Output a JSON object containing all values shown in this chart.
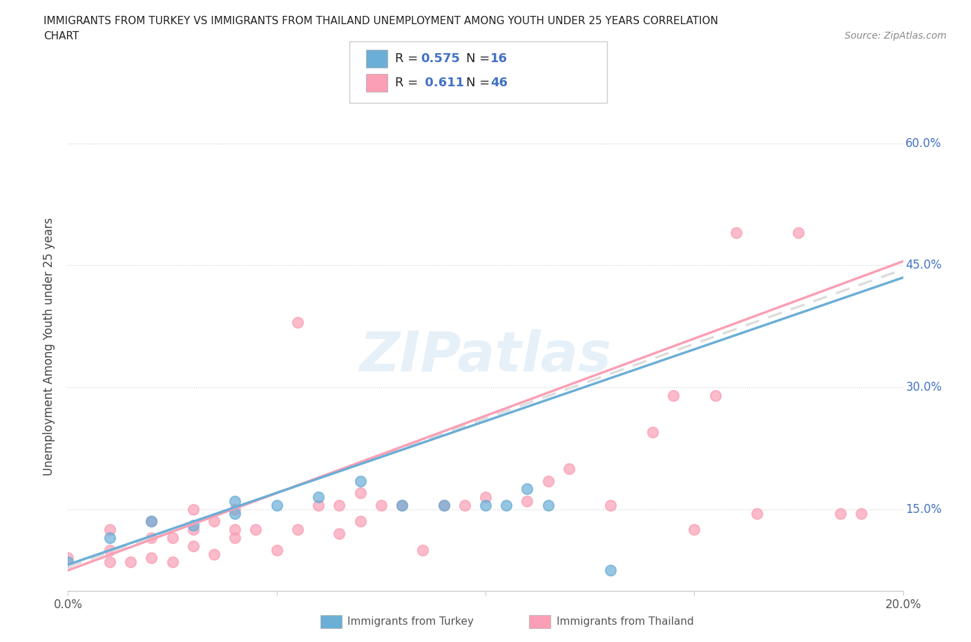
{
  "title_line1": "IMMIGRANTS FROM TURKEY VS IMMIGRANTS FROM THAILAND UNEMPLOYMENT AMONG YOUTH UNDER 25 YEARS CORRELATION",
  "title_line2": "CHART",
  "source_text": "Source: ZipAtlas.com",
  "ylabel": "Unemployment Among Youth under 25 years",
  "xlim": [
    0.0,
    0.2
  ],
  "ylim": [
    0.05,
    0.65
  ],
  "turkey_color": "#6baed6",
  "thailand_color": "#fa9fb5",
  "turkey_R": 0.575,
  "turkey_N": 16,
  "thailand_R": 0.611,
  "thailand_N": 46,
  "watermark": "ZIPatlas",
  "background_color": "#ffffff",
  "grid_color": "#cccccc",
  "turkey_scatter_x": [
    0.0,
    0.01,
    0.02,
    0.03,
    0.04,
    0.04,
    0.05,
    0.06,
    0.07,
    0.08,
    0.09,
    0.1,
    0.105,
    0.11,
    0.115,
    0.13
  ],
  "turkey_scatter_y": [
    0.085,
    0.115,
    0.135,
    0.13,
    0.145,
    0.16,
    0.155,
    0.165,
    0.185,
    0.155,
    0.155,
    0.155,
    0.155,
    0.175,
    0.155,
    0.075
  ],
  "thailand_scatter_x": [
    0.0,
    0.01,
    0.01,
    0.01,
    0.015,
    0.02,
    0.02,
    0.02,
    0.025,
    0.025,
    0.03,
    0.03,
    0.03,
    0.035,
    0.035,
    0.04,
    0.04,
    0.04,
    0.045,
    0.05,
    0.055,
    0.055,
    0.06,
    0.065,
    0.065,
    0.07,
    0.07,
    0.075,
    0.08,
    0.085,
    0.09,
    0.095,
    0.1,
    0.11,
    0.115,
    0.12,
    0.13,
    0.14,
    0.145,
    0.15,
    0.155,
    0.16,
    0.165,
    0.175,
    0.185,
    0.19
  ],
  "thailand_scatter_y": [
    0.09,
    0.085,
    0.1,
    0.125,
    0.085,
    0.09,
    0.115,
    0.135,
    0.085,
    0.115,
    0.105,
    0.125,
    0.15,
    0.095,
    0.135,
    0.115,
    0.125,
    0.15,
    0.125,
    0.1,
    0.125,
    0.38,
    0.155,
    0.12,
    0.155,
    0.135,
    0.17,
    0.155,
    0.155,
    0.1,
    0.155,
    0.155,
    0.165,
    0.16,
    0.185,
    0.2,
    0.155,
    0.245,
    0.29,
    0.125,
    0.29,
    0.49,
    0.145,
    0.49,
    0.145,
    0.145
  ],
  "line_start_x": 0.0,
  "line_end_x": 0.2,
  "turkey_line_y0": 0.082,
  "turkey_line_y1": 0.435,
  "thailand_line_y0": 0.075,
  "thailand_line_y1": 0.455,
  "dash_line_y0": 0.079,
  "dash_line_y1": 0.445
}
